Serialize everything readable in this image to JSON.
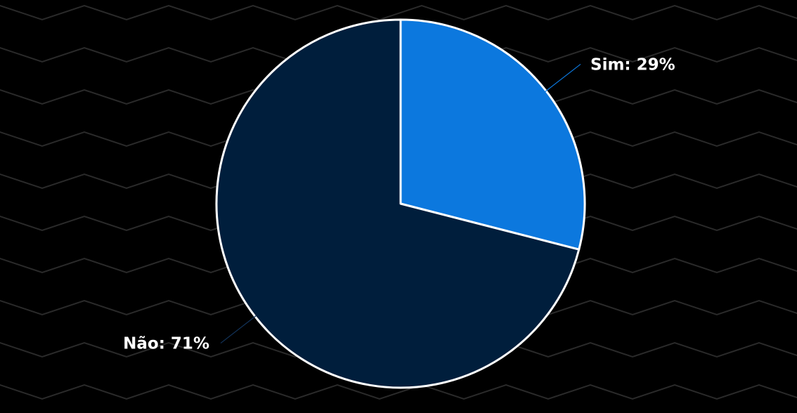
{
  "chart_data": {
    "type": "pie",
    "slices": [
      {
        "label": "Sim",
        "value": 29,
        "display": "Sim: 29%",
        "color": "#0c78de"
      },
      {
        "label": "Não",
        "value": 71,
        "display": "Não: 71%",
        "color": "#001e3c"
      }
    ],
    "title": "",
    "legend": "none"
  },
  "colors": {
    "background": "#000000",
    "pattern": "#2a2a2a",
    "slice_border": "#ffffff",
    "label_text": "#ffffff"
  }
}
